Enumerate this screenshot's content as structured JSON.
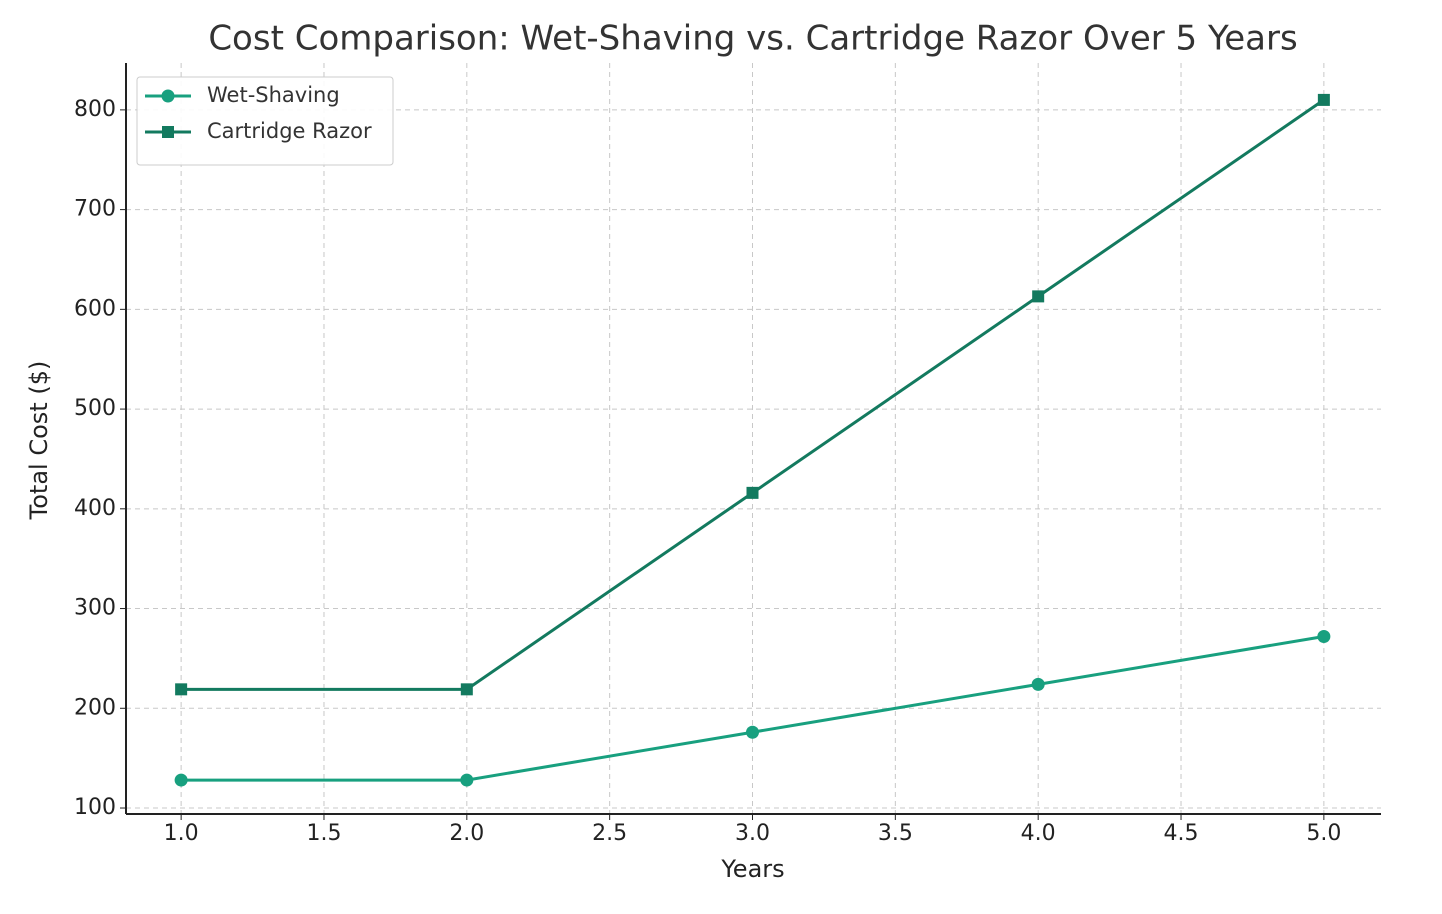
{
  "chart_data": {
    "type": "line",
    "title": "Cost Comparison: Wet-Shaving vs. Cartridge Razor Over 5 Years",
    "x_label": "Years",
    "y_label": "Total Cost ($)",
    "x": [
      1,
      2,
      3,
      4,
      5
    ],
    "series": [
      {
        "name": "Wet-Shaving",
        "color": "#18a07f",
        "marker": "circle",
        "values": [
          128,
          128,
          176,
          224,
          272
        ]
      },
      {
        "name": "Cartridge Razor",
        "color": "#137a5f",
        "marker": "square",
        "values": [
          219,
          219,
          416,
          613,
          810
        ]
      }
    ],
    "xlim": [
      0.807,
      5.2
    ],
    "ylim": [
      94,
      847
    ],
    "xticks": [
      {
        "value": 1,
        "label": "1.0"
      },
      {
        "value": 1.5,
        "label": "1.5"
      },
      {
        "value": 2,
        "label": "2.0"
      },
      {
        "value": 2.5,
        "label": "2.5"
      },
      {
        "value": 3,
        "label": "3.0"
      },
      {
        "value": 3.5,
        "label": "3.5"
      },
      {
        "value": 4,
        "label": "4.0"
      },
      {
        "value": 4.5,
        "label": "4.5"
      },
      {
        "value": 5,
        "label": "5.0"
      }
    ],
    "yticks": [
      100,
      200,
      300,
      400,
      500,
      600,
      700,
      800
    ],
    "grid": true,
    "legend": "upper left"
  }
}
